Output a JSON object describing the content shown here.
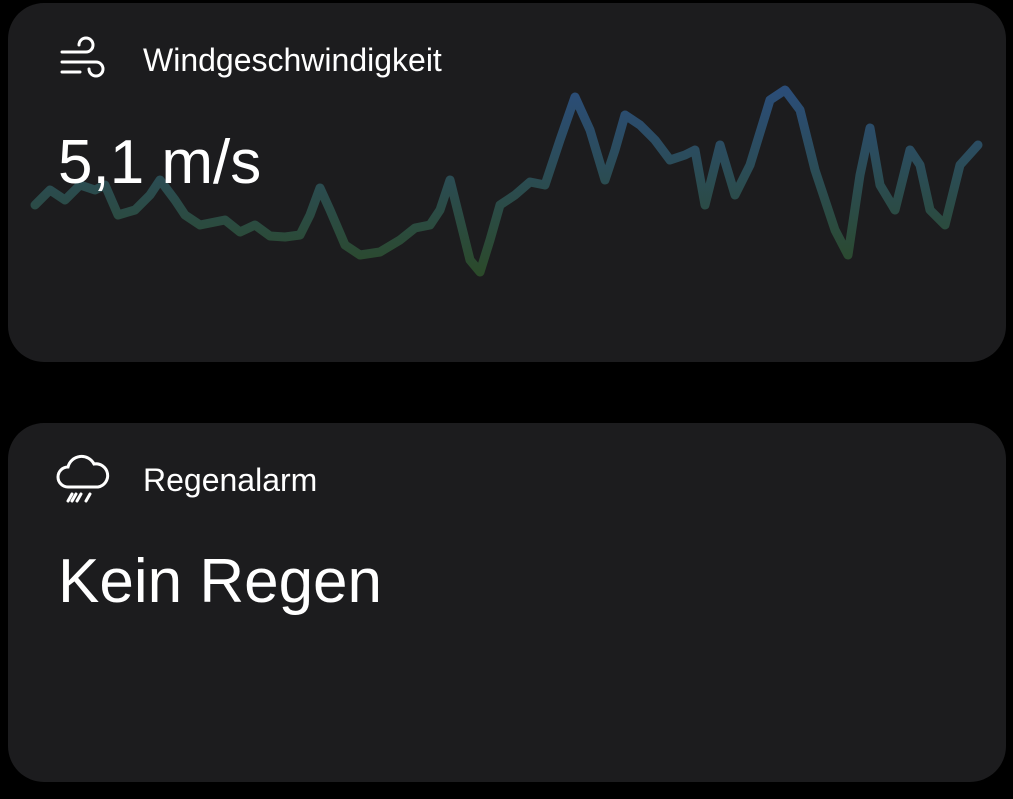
{
  "cards": [
    {
      "title": "Windgeschwindigkeit",
      "value": "5,1 m/s"
    },
    {
      "title": "Regenalarm",
      "value": "Kein Regen"
    }
  ]
}
